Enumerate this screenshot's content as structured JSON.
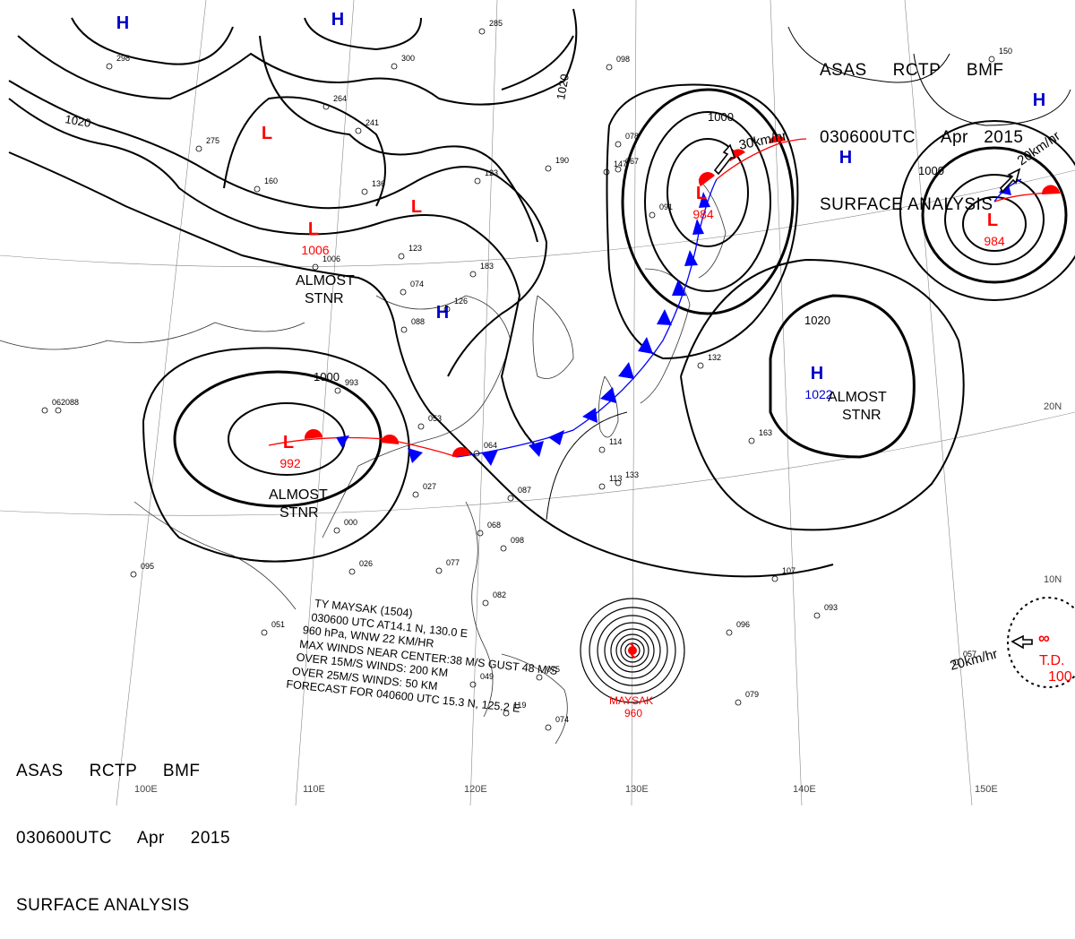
{
  "header": {
    "agency": "ASAS",
    "station": "RCTP",
    "office": "BMF",
    "datetime": "030600UTC",
    "month": "Apr",
    "year": "2015",
    "title": "SURFACE ANALYSIS"
  },
  "typhoon": {
    "name": "MAYSAK",
    "pressure": "960",
    "lines": [
      "TY  MAYSAK (1504)",
      "030600 UTC  AT14.1 N, 130.0 E",
      "960 hPa, WNW  22 KM/HR",
      "MAX WINDS NEAR CENTER:38 M/S GUST 48 M/S",
      "OVER 15M/S WINDS: 200 KM",
      "OVER 25M/S WINDS: 50 KM",
      "FORECAST FOR 040600 UTC 15.3 N, 125.2 E"
    ]
  },
  "pressure_systems": [
    {
      "type": "H",
      "label": ""
    },
    {
      "type": "H",
      "label": ""
    },
    {
      "type": "L",
      "label": ""
    },
    {
      "type": "L",
      "label": ""
    },
    {
      "type": "L",
      "label": "1006"
    },
    {
      "type": "H",
      "label": ""
    },
    {
      "type": "L",
      "label": "992"
    },
    {
      "type": "L",
      "label": "984"
    },
    {
      "type": "H",
      "label": ""
    },
    {
      "type": "H",
      "label": ""
    },
    {
      "type": "L",
      "label": "984"
    },
    {
      "type": "H",
      "label": "1022"
    }
  ],
  "td": {
    "label": "T.D.",
    "pressure": "100"
  },
  "annotations": [
    "ALMOST",
    "STNR"
  ],
  "isobar_labels": [
    "1020",
    "1020",
    "1000",
    "1000",
    "1000",
    "1020"
  ],
  "motion_labels": [
    "30km/hr",
    "20km/hr",
    "20km/hr"
  ],
  "lat_labels": [
    "20N",
    "10N"
  ],
  "lon_labels": [
    "100E",
    "110E",
    "120E",
    "130E",
    "140E",
    "150E"
  ],
  "station_values": [
    "1006",
    "993",
    "053",
    "064",
    "087",
    "098",
    "077",
    "082",
    "075",
    "074",
    "095",
    "051",
    "088",
    "062",
    "163",
    "107",
    "093",
    "096",
    "079",
    "057",
    "133",
    "114",
    "123",
    "126",
    "183",
    "074",
    "088",
    "147",
    "136",
    "123",
    "190",
    "078",
    "067",
    "091",
    "098",
    "300",
    "285",
    "264",
    "241",
    "275",
    "160",
    "298",
    "150",
    "132",
    "027",
    "026",
    "000",
    "068",
    "049",
    "113",
    "119"
  ],
  "colors": {
    "low": "#ff0000",
    "high": "#0000cc",
    "warm_front": "#ff0000",
    "cold_front": "#0000ff",
    "ink": "#000000"
  },
  "icons": [
    "warm-front-symbol",
    "cold-front-symbol",
    "typhoon-symbol",
    "motion-arrow"
  ]
}
